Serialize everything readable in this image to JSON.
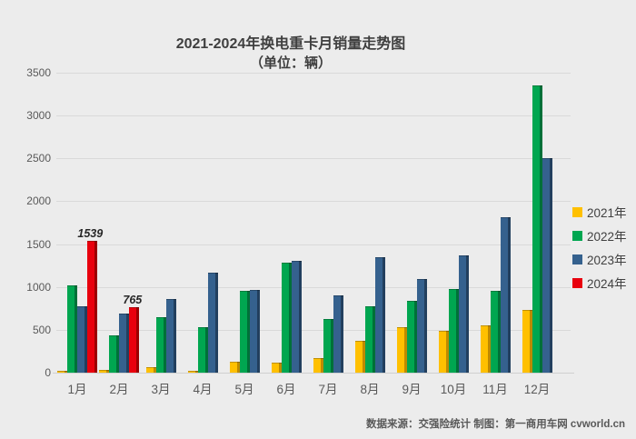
{
  "title": {
    "line1": "2021-2024年换电重卡月销量走势图",
    "line2": "（单位：辆）"
  },
  "footer": "数据来源：交强险统计 制图：第一商用车网 cvworld.cn",
  "colors": {
    "background": "#ececec",
    "gridline": "#d9d9d9",
    "axis_text": "#595959",
    "title_text": "#3f3f3f",
    "data_label_text": "#262626"
  },
  "chart_data": {
    "type": "bar",
    "title": "2021-2024年换电重卡月销量走势图",
    "subtitle": "（单位：辆）",
    "xlabel": "",
    "ylabel": "",
    "ylim": [
      0,
      3500
    ],
    "yticks": [
      0,
      500,
      1000,
      1500,
      2000,
      2500,
      3000,
      3500
    ],
    "grid": true,
    "legend_position": "right",
    "categories": [
      "1月",
      "2月",
      "3月",
      "4月",
      "5月",
      "6月",
      "7月",
      "8月",
      "9月",
      "10月",
      "11月",
      "12月"
    ],
    "series": [
      {
        "name": "2021年",
        "color": "#FFC000",
        "dark": "#BD8A00",
        "values": [
          25,
          30,
          60,
          10,
          130,
          120,
          165,
          370,
          530,
          490,
          550,
          735
        ],
        "labels": [
          null,
          null,
          null,
          null,
          null,
          null,
          null,
          null,
          null,
          null,
          null,
          null
        ]
      },
      {
        "name": "2022年",
        "color": "#00A650",
        "dark": "#007038",
        "values": [
          1020,
          440,
          650,
          535,
          950,
          1285,
          630,
          770,
          835,
          975,
          955,
          3350
        ],
        "labels": [
          null,
          null,
          null,
          null,
          null,
          null,
          null,
          null,
          null,
          null,
          null,
          null
        ]
      },
      {
        "name": "2023年",
        "color": "#35618E",
        "dark": "#223F5E",
        "values": [
          770,
          685,
          860,
          1165,
          970,
          1300,
          905,
          1345,
          1090,
          1365,
          1815,
          2500
        ],
        "labels": [
          null,
          null,
          null,
          null,
          null,
          null,
          null,
          null,
          null,
          null,
          null,
          null
        ]
      },
      {
        "name": "2024年",
        "color": "#E8000D",
        "dark": "#9B0000",
        "values": [
          1539,
          765,
          null,
          null,
          null,
          null,
          null,
          null,
          null,
          null,
          null,
          null
        ],
        "labels": [
          "1539",
          "765",
          null,
          null,
          null,
          null,
          null,
          null,
          null,
          null,
          null,
          null
        ]
      }
    ]
  }
}
